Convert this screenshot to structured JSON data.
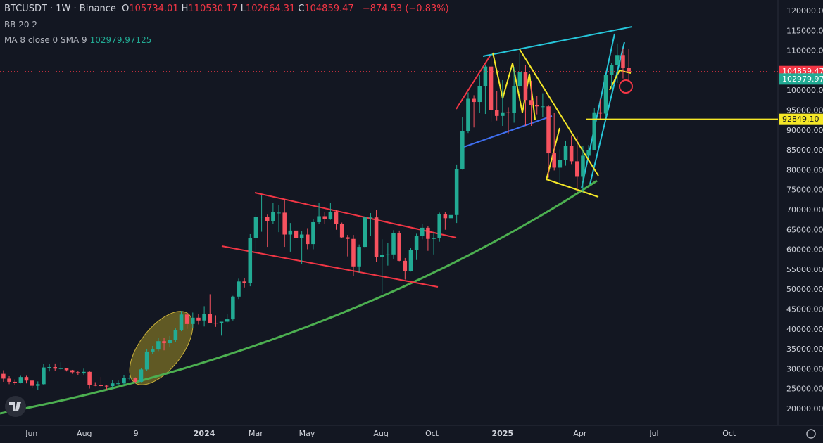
{
  "header": {
    "symbol": "BTCUSDT · 1W · Binance",
    "fields": [
      {
        "k": "O",
        "v": "105734.01"
      },
      {
        "k": "H",
        "v": "110530.17"
      },
      {
        "k": "L",
        "v": "102664.31"
      },
      {
        "k": "C",
        "v": "104859.47"
      }
    ],
    "change": "−874.53 (−0.83%)"
  },
  "indicators": [
    {
      "name": "BB 20 2"
    },
    {
      "name": "MA 8 close 0 SMA 9",
      "value": "102979.97125"
    }
  ],
  "chart_data": {
    "type": "candlestick",
    "up_color": "#22ab94",
    "down_color": "#f7525f",
    "grid": false,
    "ylim": [
      15936,
      122827
    ],
    "yticks": [
      {
        "value": 20000,
        "label": "20000.00"
      },
      {
        "value": 25000,
        "label": "25000.00"
      },
      {
        "value": 30000,
        "label": "30000.00"
      },
      {
        "value": 35000,
        "label": "35000.00"
      },
      {
        "value": 40000,
        "label": "40000.00"
      },
      {
        "value": 45000,
        "label": "45000.00"
      },
      {
        "value": 50000,
        "label": "50000.00"
      },
      {
        "value": 55000,
        "label": "55000.00"
      },
      {
        "value": 60000,
        "label": "60000.00"
      },
      {
        "value": 65000,
        "label": "65000.00"
      },
      {
        "value": 70000,
        "label": "70000.00"
      },
      {
        "value": 75000,
        "label": "75000.00"
      },
      {
        "value": 80000,
        "label": "80000.00"
      },
      {
        "value": 85000,
        "label": "85000.00"
      },
      {
        "value": 90000,
        "label": "90000.00"
      },
      {
        "value": 95000,
        "label": "95000.00"
      },
      {
        "value": 100000,
        "label": "100000.00"
      },
      {
        "value": 105000,
        "label": "105000.00"
      },
      {
        "value": 110000,
        "label": "110000.00"
      },
      {
        "value": 115000,
        "label": "115000.00"
      },
      {
        "value": 120000,
        "label": "120000.00"
      }
    ],
    "xlim": [
      -0.6,
      135
    ],
    "xticks": [
      {
        "value": 4.9,
        "label": "Jun"
      },
      {
        "value": 14.1,
        "label": "Aug"
      },
      {
        "value": 23.1,
        "label": "9"
      },
      {
        "value": 35,
        "label": "2024"
      },
      {
        "value": 44,
        "label": "Mar"
      },
      {
        "value": 52.9,
        "label": "May"
      },
      {
        "value": 65.8,
        "label": "Aug"
      },
      {
        "value": 74.7,
        "label": "Oct"
      },
      {
        "value": 87,
        "label": "2025"
      },
      {
        "value": 100.5,
        "label": "Apr"
      },
      {
        "value": 113.4,
        "label": "Jul"
      },
      {
        "value": 126.5,
        "label": "Oct"
      }
    ],
    "price_lines": [
      {
        "value": 104859.47,
        "color": "#f23645",
        "dotted": true
      },
      {
        "value": 102979.97125,
        "color": "#22ab94"
      },
      {
        "value": 92849.1,
        "label": "92849.10",
        "color": "#f5e727",
        "line": true
      }
    ],
    "ohlc": [
      [
        28900,
        29800,
        26900,
        27700
      ],
      [
        27700,
        28300,
        26300,
        26900
      ],
      [
        26900,
        27500,
        26100,
        26700
      ],
      [
        26700,
        28400,
        26500,
        28100
      ],
      [
        28100,
        28400,
        26500,
        27200
      ],
      [
        27200,
        27400,
        25300,
        25900
      ],
      [
        25900,
        27000,
        24800,
        26300
      ],
      [
        26300,
        31400,
        26200,
        30500
      ],
      [
        30500,
        31300,
        29500,
        30600
      ],
      [
        30600,
        31500,
        29700,
        30200
      ],
      [
        30200,
        31800,
        29900,
        30300
      ],
      [
        30300,
        30400,
        29500,
        29800
      ],
      [
        29800,
        29900,
        28900,
        29300
      ],
      [
        29300,
        29700,
        28600,
        29000
      ],
      [
        29000,
        30200,
        28700,
        29400
      ],
      [
        29400,
        29700,
        25200,
        26100
      ],
      [
        26100,
        26800,
        25800,
        26000
      ],
      [
        26000,
        28100,
        25400,
        25900
      ],
      [
        25900,
        26100,
        24900,
        25800
      ],
      [
        25800,
        27400,
        25100,
        26500
      ],
      [
        26500,
        27200,
        26000,
        26500
      ],
      [
        26500,
        28600,
        26100,
        27900
      ],
      [
        27900,
        28600,
        27200,
        27900
      ],
      [
        27900,
        28000,
        26500,
        26900
      ],
      [
        26900,
        30400,
        26800,
        30000
      ],
      [
        30000,
        35200,
        29700,
        34500
      ],
      [
        34500,
        35900,
        33900,
        35000
      ],
      [
        35000,
        37900,
        34600,
        37100
      ],
      [
        37100,
        37900,
        34800,
        36600
      ],
      [
        36600,
        38400,
        35600,
        37400
      ],
      [
        37400,
        40300,
        36800,
        39900
      ],
      [
        39900,
        44700,
        39600,
        43800
      ],
      [
        43800,
        44400,
        40200,
        41400
      ],
      [
        41400,
        44300,
        40500,
        43000
      ],
      [
        43000,
        44000,
        41300,
        42300
      ],
      [
        42300,
        45900,
        40800,
        43900
      ],
      [
        43900,
        48900,
        41600,
        41700
      ],
      [
        41700,
        43600,
        40700,
        41600
      ],
      [
        41600,
        41900,
        38500,
        42000
      ],
      [
        42000,
        43900,
        41800,
        42600
      ],
      [
        42600,
        48500,
        42300,
        48300
      ],
      [
        48300,
        52800,
        47700,
        52100
      ],
      [
        52100,
        52900,
        50600,
        51700
      ],
      [
        51700,
        64000,
        50900,
        63100
      ],
      [
        63100,
        69100,
        59000,
        68400
      ],
      [
        68400,
        73800,
        64600,
        68400
      ],
      [
        68400,
        68900,
        60800,
        67200
      ],
      [
        67200,
        71800,
        66500,
        69600
      ],
      [
        69400,
        71300,
        64500,
        69400
      ],
      [
        69400,
        72800,
        60800,
        63900
      ],
      [
        63900,
        66800,
        59600,
        64900
      ],
      [
        64900,
        67200,
        62800,
        63100
      ],
      [
        63100,
        64700,
        56500,
        63900
      ],
      [
        63900,
        65500,
        60200,
        61500
      ],
      [
        61500,
        67700,
        60200,
        67000
      ],
      [
        67000,
        71900,
        66600,
        68500
      ],
      [
        68500,
        69500,
        66600,
        67800
      ],
      [
        67800,
        71900,
        67600,
        69600
      ],
      [
        69600,
        70000,
        65100,
        66600
      ],
      [
        66600,
        66900,
        63000,
        63200
      ],
      [
        63200,
        63800,
        58400,
        62800
      ],
      [
        62800,
        63800,
        53500,
        55900
      ],
      [
        55900,
        61400,
        54300,
        60800
      ],
      [
        60800,
        68300,
        60700,
        68200
      ],
      [
        68200,
        69300,
        63500,
        68200
      ],
      [
        68200,
        70000,
        57100,
        58200
      ],
      [
        58200,
        62700,
        49100,
        58700
      ],
      [
        58700,
        61800,
        56100,
        58900
      ],
      [
        58900,
        65000,
        57800,
        64200
      ],
      [
        64200,
        64900,
        57200,
        57300
      ],
      [
        57300,
        58000,
        52600,
        54800
      ],
      [
        54800,
        60600,
        54600,
        60000
      ],
      [
        60000,
        64100,
        57500,
        63600
      ],
      [
        63600,
        66500,
        62700,
        65600
      ],
      [
        65600,
        66000,
        59800,
        62800
      ],
      [
        62800,
        64500,
        58900,
        63000
      ],
      [
        63000,
        69400,
        62100,
        69000
      ],
      [
        69000,
        69500,
        65100,
        68000
      ],
      [
        68000,
        73600,
        67500,
        68800
      ],
      [
        68800,
        81500,
        66800,
        80400
      ],
      [
        80400,
        93500,
        80200,
        89800
      ],
      [
        89800,
        99600,
        89400,
        98000
      ],
      [
        98000,
        98900,
        90800,
        97200
      ],
      [
        97200,
        104000,
        94500,
        101100
      ],
      [
        101100,
        106500,
        94200,
        106100
      ],
      [
        106100,
        108300,
        92200,
        95200
      ],
      [
        95200,
        99900,
        92500,
        93700
      ],
      [
        93700,
        102700,
        91200,
        94600
      ],
      [
        94600,
        95900,
        89300,
        94500
      ],
      [
        94500,
        106000,
        92000,
        101100
      ],
      [
        101100,
        109600,
        99500,
        104700
      ],
      [
        104700,
        106400,
        91200,
        97700
      ],
      [
        97700,
        102500,
        91200,
        96400
      ],
      [
        96400,
        98800,
        94100,
        96100
      ],
      [
        96100,
        99400,
        93400,
        96100
      ],
      [
        96100,
        96500,
        78200,
        84300
      ],
      [
        84300,
        94400,
        80000,
        80700
      ],
      [
        80700,
        85300,
        76600,
        82600
      ],
      [
        82600,
        87500,
        81200,
        86100
      ],
      [
        86100,
        88800,
        81600,
        82300
      ],
      [
        82300,
        88500,
        74500,
        78400
      ],
      [
        78400,
        86100,
        74500,
        83700
      ],
      [
        83700,
        86400,
        83100,
        85100
      ],
      [
        85100,
        95700,
        85100,
        94600
      ],
      [
        94600,
        97900,
        92800,
        94300
      ],
      [
        94300,
        104100,
        93400,
        104100
      ],
      [
        104100,
        107100,
        100700,
        106500
      ],
      [
        106500,
        111900,
        102000,
        109000
      ],
      [
        109000,
        110700,
        103100,
        105700
      ],
      [
        105734.01,
        110530.17,
        102664.31,
        104859.47
      ]
    ]
  }
}
